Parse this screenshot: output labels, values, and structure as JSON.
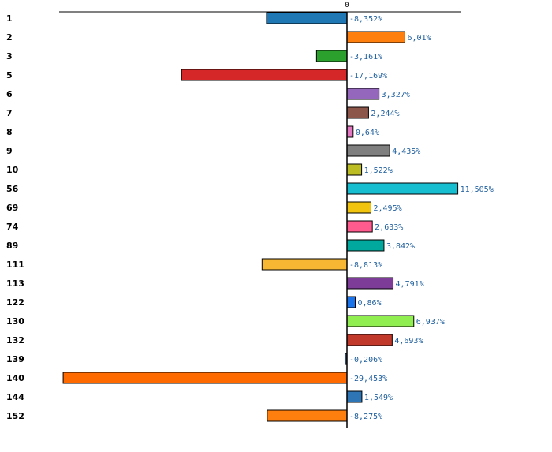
{
  "chart_data": {
    "type": "bar",
    "orientation": "horizontal",
    "categories": [
      "1",
      "2",
      "3",
      "5",
      "6",
      "7",
      "8",
      "9",
      "10",
      "56",
      "69",
      "74",
      "89",
      "111",
      "113",
      "122",
      "130",
      "132",
      "139",
      "140",
      "144",
      "152"
    ],
    "values": [
      -8.352,
      6.01,
      -3.161,
      -17.169,
      3.327,
      2.244,
      0.64,
      4.435,
      1.522,
      11.505,
      2.495,
      2.633,
      3.842,
      -8.813,
      4.791,
      0.86,
      6.937,
      4.693,
      -0.206,
      -29.453,
      1.549,
      -8.275
    ],
    "value_labels": [
      "-8,352%",
      "6,01%",
      "-3,161%",
      "-17,169%",
      "3,327%",
      "2,244%",
      "0,64%",
      "4,435%",
      "1,522%",
      "11,505%",
      "2,495%",
      "2,633%",
      "3,842%",
      "-8,813%",
      "4,791%",
      "0,86%",
      "6,937%",
      "4,693%",
      "-0,206%",
      "-29,453%",
      "1,549%",
      "-8,275%"
    ],
    "colors": [
      "#1f77b4",
      "#ff7f0e",
      "#2ca02c",
      "#d62728",
      "#9467bd",
      "#8c564b",
      "#e377c2",
      "#7f7f7f",
      "#bcbd22",
      "#17becf",
      "#f1c40f",
      "#ff5b8f",
      "#00a89d",
      "#f7b733",
      "#7d3c98",
      "#1a73e8",
      "#90ee50",
      "#c0392b",
      "#34495e",
      "#ff6a00",
      "#2e75b6",
      "#ff7f0e"
    ],
    "zero_tick_label": "0",
    "xlim": [
      -30,
      12
    ],
    "title": "",
    "xlabel": "",
    "ylabel": ""
  }
}
